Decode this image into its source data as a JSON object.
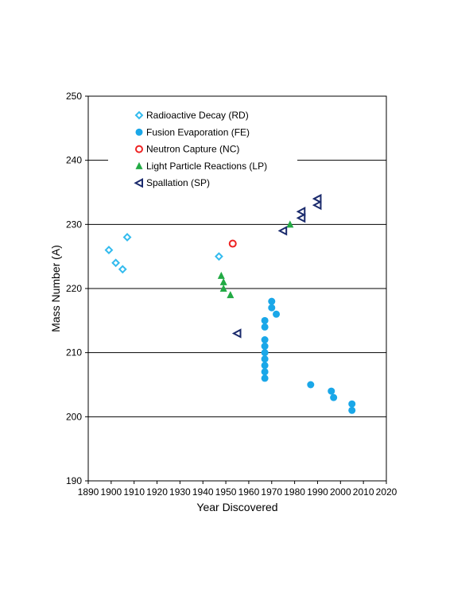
{
  "chart_data": {
    "type": "scatter",
    "xlabel": "Year Discovered",
    "ylabel": "Mass Number (A)",
    "xlim": [
      1890,
      2020
    ],
    "ylim": [
      190,
      250
    ],
    "x_ticks": [
      1890,
      1900,
      1910,
      1920,
      1930,
      1940,
      1950,
      1960,
      1970,
      1980,
      1990,
      2000,
      2010,
      2020
    ],
    "y_ticks": [
      190,
      200,
      210,
      220,
      230,
      240,
      250
    ],
    "horizontal_grid": true,
    "vertical_grid": false,
    "legend_position": "top-left",
    "series": [
      {
        "name": "Radioactive Decay (RD)",
        "marker": "diamond-open",
        "color": "#33bbee",
        "points": [
          [
            1899,
            226
          ],
          [
            1902,
            224
          ],
          [
            1905,
            223
          ],
          [
            1907,
            228
          ],
          [
            1947,
            225
          ]
        ]
      },
      {
        "name": "Fusion Evaporation (FE)",
        "marker": "circle-filled",
        "color": "#1aa7e8",
        "points": [
          [
            1967,
            215
          ],
          [
            1967,
            214
          ],
          [
            1967,
            212
          ],
          [
            1967,
            211
          ],
          [
            1967,
            210
          ],
          [
            1967,
            209
          ],
          [
            1967,
            208
          ],
          [
            1967,
            207
          ],
          [
            1967,
            206
          ],
          [
            1970,
            218
          ],
          [
            1970,
            217
          ],
          [
            1972,
            216
          ],
          [
            1987,
            205
          ],
          [
            1996,
            204
          ],
          [
            1997,
            203
          ],
          [
            2005,
            202
          ],
          [
            2005,
            201
          ]
        ]
      },
      {
        "name": "Neutron Capture (NC)",
        "marker": "circle-open",
        "color": "#ee2222",
        "points": [
          [
            1953,
            227
          ]
        ]
      },
      {
        "name": "Light Particle Reactions (LP)",
        "marker": "triangle-filled",
        "color": "#22aa44",
        "points": [
          [
            1948,
            222
          ],
          [
            1949,
            221
          ],
          [
            1949,
            220
          ],
          [
            1952,
            219
          ],
          [
            1978,
            230
          ]
        ]
      },
      {
        "name": "Spallation (SP)",
        "marker": "triangle-left-open",
        "color": "#1a2a6c",
        "points": [
          [
            1955,
            213
          ],
          [
            1975,
            229
          ],
          [
            1983,
            231
          ],
          [
            1983,
            232
          ],
          [
            1990,
            233
          ],
          [
            1990,
            234
          ]
        ]
      }
    ]
  }
}
